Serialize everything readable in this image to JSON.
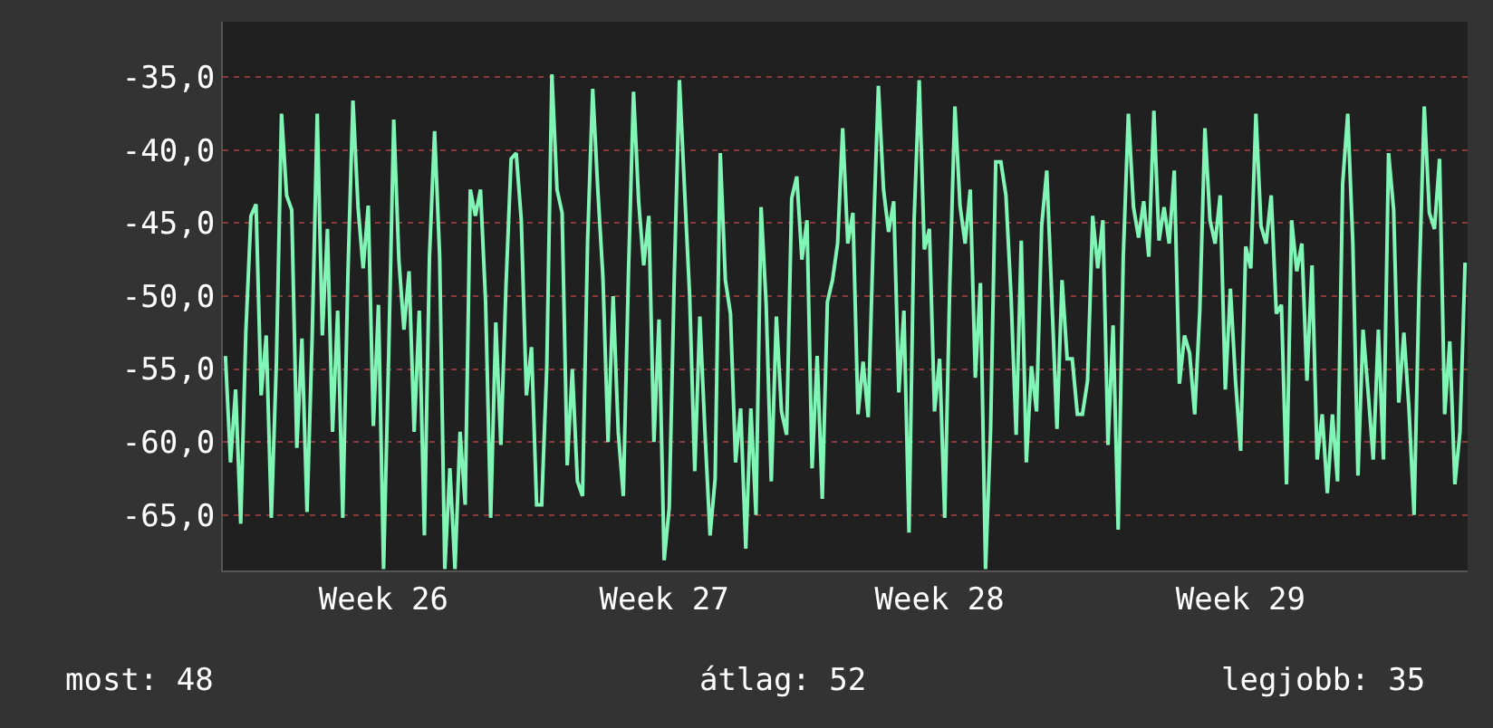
{
  "chart_data": {
    "type": "line",
    "categories": [
      null,
      null,
      null,
      null,
      null,
      null,
      null,
      null,
      null,
      null,
      null,
      null,
      null,
      null,
      null,
      null,
      null,
      null,
      null,
      null,
      null,
      null,
      null,
      null,
      null,
      null,
      null,
      null,
      null,
      null,
      null,
      "Week 26",
      null,
      null,
      null,
      null,
      null,
      null,
      null,
      null,
      null,
      null,
      null,
      null,
      null,
      null,
      null,
      null,
      null,
      null,
      null,
      null,
      null,
      null,
      null,
      null,
      null,
      null,
      null,
      null,
      null,
      null,
      null,
      null,
      null,
      null,
      null,
      null,
      null,
      null,
      null,
      null,
      null,
      null,
      null,
      null,
      null,
      null,
      null,
      null,
      null,
      null,
      null,
      null,
      null,
      null,
      "Week 27",
      null,
      null,
      null,
      null,
      null,
      null,
      null,
      null,
      null,
      null,
      null,
      null,
      null,
      null,
      null,
      null,
      null,
      null,
      null,
      null,
      null,
      null,
      null,
      null,
      null,
      null,
      null,
      null,
      null,
      null,
      null,
      null,
      null,
      null,
      null,
      null,
      null,
      null,
      null,
      null,
      null,
      null,
      null,
      null,
      null,
      null,
      null,
      null,
      null,
      null,
      null,
      null,
      null,
      "Week 28",
      null,
      null,
      null,
      null,
      null,
      null,
      null,
      null,
      null,
      null,
      null,
      null,
      null,
      null,
      null,
      null,
      null,
      null,
      null,
      null,
      null,
      null,
      null,
      null,
      null,
      null,
      null,
      null,
      null,
      null,
      null,
      null,
      null,
      null,
      null,
      null,
      null,
      null,
      null,
      null,
      null,
      null,
      null,
      null,
      null,
      null,
      null,
      null,
      null,
      null,
      null,
      null,
      null,
      null,
      null,
      null,
      null,
      null,
      "Week 29",
      null,
      null,
      null,
      null,
      null,
      null,
      null,
      null,
      null,
      null,
      null,
      null,
      null,
      null,
      null,
      null,
      null,
      null,
      null,
      null,
      null,
      null,
      null,
      null,
      null,
      null,
      null,
      null,
      null,
      null,
      null,
      null,
      null,
      null,
      null,
      null,
      null,
      null,
      null,
      null,
      null,
      null,
      null,
      null
    ],
    "series": [
      {
        "color": "#80f5b5",
        "values": [
          -54.1,
          -61.4,
          -56.4,
          -65.6,
          -52.5,
          -44.5,
          -43.7,
          -56.8,
          -52.7,
          -65.2,
          -54.5,
          -37.5,
          -43.1,
          -44.1,
          -60.4,
          -52.9,
          -64.8,
          -52.9,
          -37.5,
          -52.7,
          -45.4,
          -59.3,
          -51,
          -65.2,
          -48.7,
          -36.6,
          -43.9,
          -48.1,
          -43.8,
          -58.9,
          -50.6,
          -68.7,
          -54.1,
          -37.9,
          -47.5,
          -52.3,
          -48.3,
          -59.3,
          -51,
          -66.4,
          -47.3,
          -38.7,
          -47.3,
          -68.7,
          -61.8,
          -68.7,
          -59.3,
          -64.3,
          -42.7,
          -44.5,
          -42.7,
          -50.4,
          -65.2,
          -51.8,
          -60.2,
          -49.3,
          -40.6,
          -40.2,
          -44.8,
          -56.8,
          -53.5,
          -64.3,
          -64.3,
          -54.8,
          -34.8,
          -42.7,
          -44.3,
          -61.6,
          -55,
          -62.7,
          -63.7,
          -46.2,
          -35.8,
          -42.7,
          -48.7,
          -60,
          -50,
          -59.3,
          -63.7,
          -48.5,
          -36,
          -43.5,
          -47.9,
          -44.5,
          -60,
          -51.6,
          -68.1,
          -64.5,
          -48.5,
          -35.2,
          -42.7,
          -50,
          -62,
          -51.4,
          -59.3,
          -66.4,
          -62.5,
          -40.2,
          -48.9,
          -51.2,
          -61.4,
          -57.7,
          -67.3,
          -57.7,
          -65,
          -43.9,
          -50.6,
          -62.7,
          -51.4,
          -57.9,
          -59.5,
          -43.3,
          -41.8,
          -47.5,
          -44.8,
          -61.8,
          -54.1,
          -63.9,
          -50.4,
          -48.9,
          -46.4,
          -38.5,
          -46.4,
          -44.3,
          -58.1,
          -54.5,
          -58.3,
          -46,
          -35.6,
          -42.7,
          -45.6,
          -43.5,
          -56.6,
          -51,
          -66.2,
          -44.8,
          -35.2,
          -46.8,
          -45.4,
          -57.9,
          -54.3,
          -65.2,
          -49.1,
          -37,
          -43.8,
          -46.4,
          -42.7,
          -55.6,
          -49.1,
          -68.7,
          -59.1,
          -40.8,
          -40.8,
          -43.1,
          -50,
          -59.5,
          -46.2,
          -61.4,
          -54.8,
          -57.9,
          -45.2,
          -41.4,
          -50.2,
          -59.1,
          -48.9,
          -54.3,
          -54.3,
          -58.1,
          -58.1,
          -55.8,
          -44.5,
          -48.1,
          -44.8,
          -60.2,
          -52,
          -66,
          -47.3,
          -37.5,
          -43.9,
          -46,
          -43.5,
          -47.3,
          -37.3,
          -46.2,
          -43.9,
          -46.4,
          -41.4,
          -56,
          -52.7,
          -53.9,
          -58.1,
          -51,
          -38.5,
          -44.8,
          -46.4,
          -43.1,
          -56.4,
          -49.5,
          -55.8,
          -60.6,
          -46.6,
          -48.1,
          -37.5,
          -45.2,
          -46.4,
          -43.1,
          -51.2,
          -50.6,
          -62.9,
          -44.8,
          -48.3,
          -46.4,
          -55.8,
          -47.9,
          -61.2,
          -58.1,
          -63.5,
          -58.1,
          -62.7,
          -42.3,
          -37.5,
          -46.4,
          -62.3,
          -52.3,
          -56.6,
          -61.2,
          -52.3,
          -61.2,
          -40.2,
          -44.1,
          -57.3,
          -52.5,
          -57.7,
          -65,
          -49.1,
          -37,
          -44.3,
          -45.4,
          -40.6,
          -58.1,
          -53.1,
          -62.9,
          -59.3,
          -47.7
        ]
      }
    ],
    "ylim": [
      -68.8,
      -31.2
    ],
    "yticks": [
      {
        "value": -35,
        "label": "-35,0"
      },
      {
        "value": -40,
        "label": "-40,0"
      },
      {
        "value": -45,
        "label": "-45,0"
      },
      {
        "value": -50,
        "label": "-50,0"
      },
      {
        "value": -55,
        "label": "-55,0"
      },
      {
        "value": -60,
        "label": "-60,0"
      },
      {
        "value": -65,
        "label": "-65,0"
      }
    ],
    "grid": "y",
    "marker": "none",
    "line_style": "solid",
    "annotations": [
      "most: 48",
      "átlag: 52",
      "legjobb: 35"
    ]
  }
}
